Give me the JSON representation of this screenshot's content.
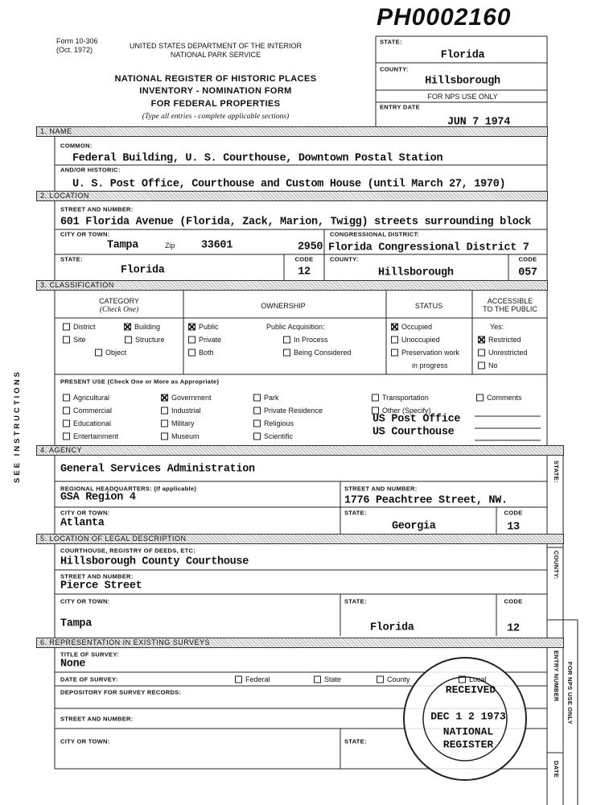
{
  "header": {
    "stamp": "PH0002160",
    "form": "Form 10-306",
    "form_date": "(Oct. 1972)",
    "agency": "UNITED STATES DEPARTMENT OF THE INTERIOR",
    "service": "NATIONAL PARK SERVICE",
    "title1": "NATIONAL REGISTER OF HISTORIC PLACES",
    "title2": "INVENTORY - NOMINATION FORM",
    "title3": "FOR FEDERAL PROPERTIES",
    "instructions": "(Type all entries - complete applicable sections)"
  },
  "nps_box": {
    "state_label": "STATE:",
    "state": "Florida",
    "county_label": "COUNTY:",
    "county": "Hillsborough",
    "use_only": "FOR NPS USE ONLY",
    "entry_date_label": "ENTRY DATE",
    "entry_date": "JUN 7 1974"
  },
  "side_text": "SEE INSTRUCTIONS",
  "section1": {
    "heading": "1. NAME",
    "common_label": "COMMON:",
    "common": "Federal Building, U. S. Courthouse, Downtown Postal Station",
    "historic_label": "AND/OR HISTORIC:",
    "historic": "U. S. Post Office, Courthouse and Custom House (until March 27, 1970)"
  },
  "section2": {
    "heading": "2. LOCATION",
    "street_label": "STREET AND NUMBER:",
    "street": "601 Florida Avenue (Florida, Zack, Marion, Twigg) streets surrounding block",
    "city_label": "CITY OR TOWN:",
    "city": "Tampa",
    "zip_label": "Zip",
    "zip": "33601",
    "city_code": "2950",
    "district_label": "CONGRESSIONAL DISTRICT:",
    "district": "Florida Congressional District 7",
    "state_label": "STATE:",
    "state": "Florida",
    "state_code_label": "CODE",
    "state_code": "12",
    "county_label": "COUNTY:",
    "county": "Hillsborough",
    "county_code_label": "CODE",
    "county_code": "057"
  },
  "section3": {
    "heading": "3. CLASSIFICATION",
    "category_title": "CATEGORY",
    "category_note": "(Check One)",
    "ownership_title": "OWNERSHIP",
    "status_title": "STATUS",
    "accessible_title1": "ACCESSIBLE",
    "accessible_title2": "TO THE PUBLIC",
    "category": [
      {
        "label": "District",
        "checked": false
      },
      {
        "label": "Building",
        "checked": true
      },
      {
        "label": "Site",
        "checked": false
      },
      {
        "label": "Structure",
        "checked": false
      },
      {
        "label": "Object",
        "checked": false
      }
    ],
    "ownership": [
      {
        "label": "Public",
        "checked": true
      },
      {
        "label": "Private",
        "checked": false
      },
      {
        "label": "Both",
        "checked": false
      }
    ],
    "acquisition_label": "Public Acquisition:",
    "acquisition": [
      {
        "label": "In Process",
        "checked": false
      },
      {
        "label": "Being Considered",
        "checked": false
      }
    ],
    "status": [
      {
        "label": "Occupied",
        "checked": true
      },
      {
        "label": "Unoccupied",
        "checked": false
      },
      {
        "label": "Preservation work",
        "checked": false
      }
    ],
    "status_note": "in progress",
    "accessible_yes": "Yes:",
    "accessible": [
      {
        "label": "Restricted",
        "checked": true
      },
      {
        "label": "Unrestricted",
        "checked": false
      },
      {
        "label": "No",
        "checked": false
      }
    ],
    "present_use_label": "PRESENT USE (Check One or More as Appropriate)",
    "present_use": [
      {
        "label": "Agricultural",
        "checked": false
      },
      {
        "label": "Commercial",
        "checked": false
      },
      {
        "label": "Educational",
        "checked": false
      },
      {
        "label": "Entertainment",
        "checked": false
      },
      {
        "label": "Government",
        "checked": true
      },
      {
        "label": "Industrial",
        "checked": false
      },
      {
        "label": "Military",
        "checked": false
      },
      {
        "label": "Museum",
        "checked": false
      },
      {
        "label": "Park",
        "checked": false
      },
      {
        "label": "Private Residence",
        "checked": false
      },
      {
        "label": "Religious",
        "checked": false
      },
      {
        "label": "Scientific",
        "checked": false
      },
      {
        "label": "Transportation",
        "checked": false
      },
      {
        "label": "Other (Specify)",
        "checked": false
      },
      {
        "label": "Comments",
        "checked": false
      }
    ],
    "other_entries": [
      "US Post Office",
      "US Courthouse"
    ]
  },
  "section4": {
    "heading": "4. AGENCY",
    "name": "General Services Administration",
    "hq_label": "REGIONAL HEADQUARTERS: (If applicable)",
    "hq": "GSA Region 4",
    "street_label": "STREET AND NUMBER:",
    "street": "1776 Peachtree Street, NW.",
    "city_label": "CITY OR TOWN:",
    "city": "Atlanta",
    "state_label": "STATE:",
    "state": "Georgia",
    "code_label": "CODE",
    "code": "13",
    "side_label": "STATE:"
  },
  "section5": {
    "heading": "5. LOCATION OF LEGAL DESCRIPTION",
    "courthouse_label": "COURTHOUSE, REGISTRY OF DEEDS, ETC:",
    "courthouse": "Hillsborough County Courthouse",
    "street_label": "STREET AND NUMBER:",
    "street": "Pierce Street",
    "city_label": "CITY OR TOWN:",
    "city": "Tampa",
    "state_label": "STATE:",
    "state": "Florida",
    "code_label": "CODE",
    "code": "12",
    "side_label": "COUNTY:"
  },
  "section6": {
    "heading": "6. REPRESENTATION IN EXISTING SURVEYS",
    "title_label": "TITLE OF SURVEY:",
    "title": "None",
    "date_label": "DATE OF SURVEY:",
    "options": [
      {
        "label": "Federal",
        "checked": false
      },
      {
        "label": "State",
        "checked": false
      },
      {
        "label": "County",
        "checked": false
      },
      {
        "label": "Local",
        "checked": false
      }
    ],
    "depository_label": "DEPOSITORY FOR SURVEY RECORDS:",
    "street_label": "STREET AND NUMBER:",
    "city_label": "CITY OR TOWN:",
    "state_label": "STATE:"
  },
  "nps_strip": {
    "use_only": "FOR NPS USE ONLY",
    "entry_number": "ENTRY NUMBER",
    "date": "DATE"
  },
  "received_stamp": {
    "received": "RECEIVED",
    "date": "DEC 1 2 1973",
    "line1": "NATIONAL",
    "line2": "REGISTER"
  }
}
